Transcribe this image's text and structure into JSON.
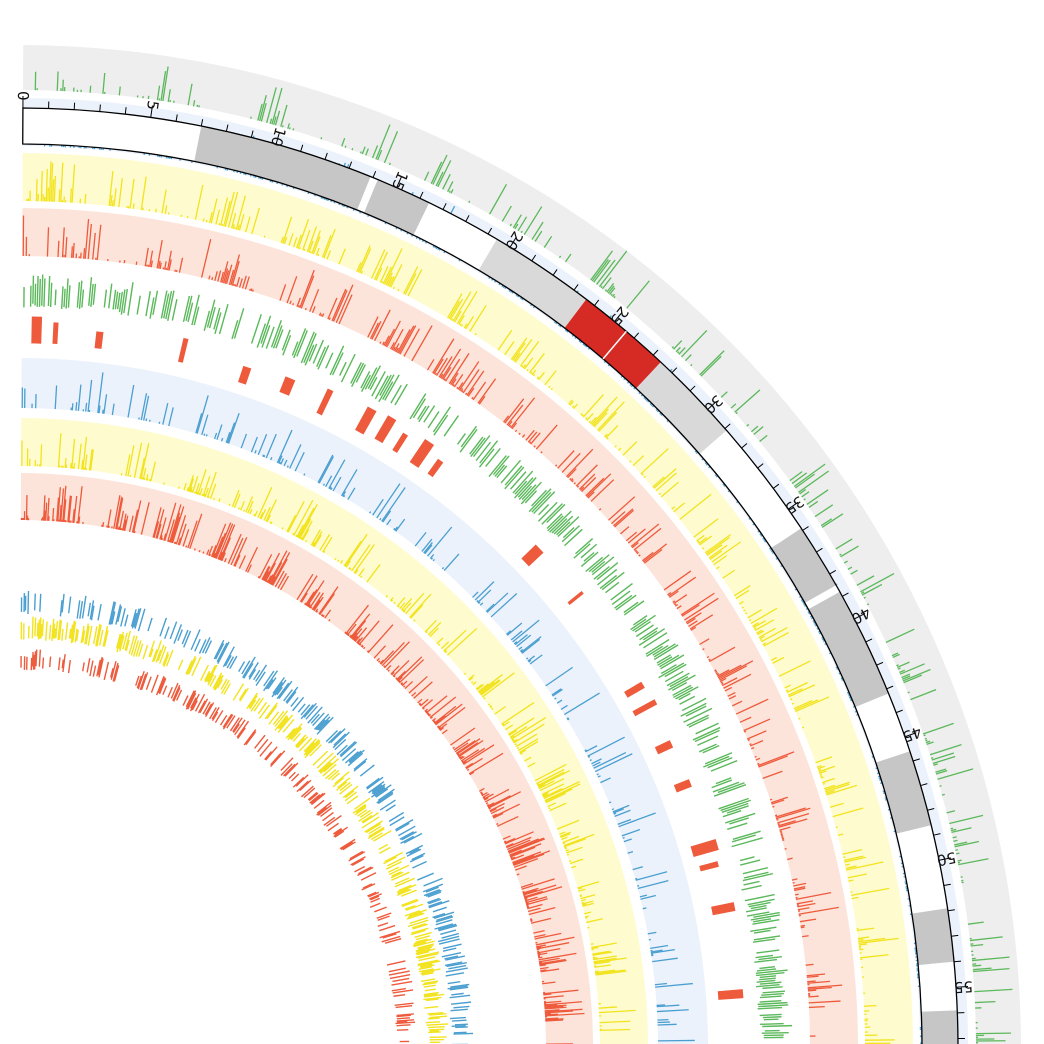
{
  "chart_data": {
    "type": "circos",
    "title": "",
    "axis": {
      "min": 0,
      "max": 58.2,
      "major_step": 5,
      "minor_step": 1,
      "tick_labels": [
        "0",
        "5",
        "10",
        "15",
        "20",
        "25",
        "30",
        "35",
        "40",
        "45",
        "50",
        "55"
      ]
    },
    "cytobands": [
      {
        "start": 0,
        "end": 7.0,
        "stain": "gneg"
      },
      {
        "start": 7.0,
        "end": 13.9,
        "stain": "gpos50"
      },
      {
        "start": 13.9,
        "end": 14.2,
        "stain": "gneg"
      },
      {
        "start": 14.2,
        "end": 16.4,
        "stain": "gpos50"
      },
      {
        "start": 16.4,
        "end": 19.4,
        "stain": "gneg"
      },
      {
        "start": 19.4,
        "end": 23.6,
        "stain": "gpos25"
      },
      {
        "start": 23.6,
        "end": 25.6,
        "stain": "acen"
      },
      {
        "start": 25.6,
        "end": 27.4,
        "stain": "acen"
      },
      {
        "start": 27.4,
        "end": 31.1,
        "stain": "gpos25"
      },
      {
        "start": 31.1,
        "end": 35.9,
        "stain": "gneg"
      },
      {
        "start": 35.9,
        "end": 38.5,
        "stain": "gpos50"
      },
      {
        "start": 38.5,
        "end": 38.8,
        "stain": "gneg"
      },
      {
        "start": 38.8,
        "end": 43.2,
        "stain": "gpos50"
      },
      {
        "start": 43.2,
        "end": 45.6,
        "stain": "gneg"
      },
      {
        "start": 45.6,
        "end": 48.6,
        "stain": "gpos50"
      },
      {
        "start": 48.6,
        "end": 51.9,
        "stain": "gneg"
      },
      {
        "start": 51.9,
        "end": 54.0,
        "stain": "gpos50"
      },
      {
        "start": 54.0,
        "end": 55.9,
        "stain": "gneg"
      },
      {
        "start": 55.9,
        "end": 58.2,
        "stain": "gpos50"
      }
    ],
    "stain_colors": {
      "gneg": "#ffffff",
      "gpos25": "#d9d9d9",
      "gpos50": "#c6c6c6",
      "acen": "#d62a25"
    },
    "tracks": [
      {
        "kind": "histogram",
        "inner_radius": 958,
        "outer_radius": 1003,
        "background": "#eeeeee",
        "color": "#5bb85b",
        "seed": 11,
        "density": 0.5,
        "hotspots": [
          [
            18.5,
            0.9
          ],
          [
            23.5,
            1.0
          ],
          [
            24.9,
            0.9
          ]
        ]
      },
      {
        "kind": "histogram",
        "inner_radius": 902,
        "outer_radius": 950,
        "background": "#ecf2fc",
        "color": "#4a9fd0",
        "seed": 23,
        "density": 0.55,
        "hotspots": [
          [
            13.0,
            0.9
          ],
          [
            17.2,
            1.0
          ],
          [
            20.8,
            0.8
          ]
        ]
      },
      {
        "kind": "histogram",
        "inner_radius": 847,
        "outer_radius": 895,
        "background": "#fefccf",
        "color": "#f2e31e",
        "seed": 37,
        "density": 0.6,
        "hotspots": [
          [
            15.5,
            0.9
          ],
          [
            17.8,
            0.9
          ],
          [
            33.0,
            0.7
          ]
        ]
      },
      {
        "kind": "histogram",
        "inner_radius": 792,
        "outer_radius": 840,
        "background": "#fde4da",
        "color": "#ee5a3c",
        "seed": 41,
        "density": 0.65,
        "hotspots": [
          [
            15.0,
            1.0
          ],
          [
            18.3,
            0.9
          ]
        ]
      },
      {
        "kind": "tiles",
        "inner_radius": 740,
        "outer_radius": 775,
        "background": "none",
        "color": "#5bb85b",
        "seed": 53,
        "density": 0.5,
        "hotspots": []
      },
      {
        "kind": "segments",
        "inner_radius": 700,
        "outer_radius": 740,
        "background": "none",
        "color": "#ee5a3c",
        "seed": 61,
        "density": 0.2,
        "hotspots": []
      },
      {
        "kind": "histogram",
        "inner_radius": 640,
        "outer_radius": 690,
        "background": "#ecf2fc",
        "color": "#4a9fd0",
        "seed": 71,
        "density": 0.45,
        "hotspots": []
      },
      {
        "kind": "histogram",
        "inner_radius": 582,
        "outer_radius": 630,
        "background": "#fefccf",
        "color": "#f2e31e",
        "seed": 83,
        "density": 0.6,
        "hotspots": []
      },
      {
        "kind": "histogram",
        "inner_radius": 528,
        "outer_radius": 575,
        "background": "#fde4da",
        "color": "#ee5a3c",
        "seed": 97,
        "density": 0.8,
        "hotspots": []
      },
      {
        "kind": "tiles",
        "inner_radius": 433,
        "outer_radius": 458,
        "background": "none",
        "color": "#4a9fd0",
        "seed": 103,
        "density": 0.4,
        "hotspots": []
      },
      {
        "kind": "tiles",
        "inner_radius": 408,
        "outer_radius": 432,
        "background": "none",
        "color": "#f2e31e",
        "seed": 109,
        "density": 0.45,
        "hotspots": []
      },
      {
        "kind": "tiles",
        "inner_radius": 378,
        "outer_radius": 400,
        "background": "none",
        "color": "#ee5a3c",
        "seed": 113,
        "density": 0.3,
        "hotspots": []
      }
    ]
  }
}
